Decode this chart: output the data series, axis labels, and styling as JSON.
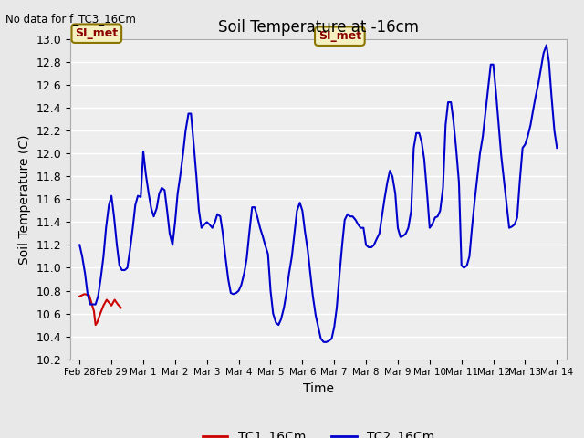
{
  "title": "Soil Temperature at -16cm",
  "xlabel": "Time",
  "ylabel": "Soil Temperature (C)",
  "no_data_text": "No data for f_TC3_16Cm",
  "annotation_text": "SI_met",
  "ylim": [
    10.2,
    13.0
  ],
  "background_color": "#e8e8e8",
  "plot_bg_color": "#eeeeee",
  "grid_color": "white",
  "tc1_color": "#cc0000",
  "tc2_color": "#0000cc",
  "legend_tc1": "TC1_16Cm",
  "legend_tc2": "TC2_16Cm",
  "x_tick_labels": [
    "Feb 28",
    "Feb 29",
    "Mar 1",
    "Mar 2",
    "Mar 3",
    "Mar 4",
    "Mar 5",
    "Mar 6",
    "Mar 7",
    "Mar 8",
    "Mar 9",
    "Mar 10",
    "Mar 11",
    "Mar 12",
    "Mar 13",
    "Mar 14"
  ],
  "x_tick_positions": [
    0,
    1,
    2,
    3,
    4,
    5,
    6,
    7,
    8,
    9,
    10,
    11,
    12,
    13,
    14,
    15
  ],
  "tc1_x": [
    0.0,
    0.15,
    0.3,
    0.45,
    0.5,
    0.55,
    0.65,
    0.75,
    0.85,
    1.0,
    1.1,
    1.2,
    1.3
  ],
  "tc1_y": [
    10.75,
    10.77,
    10.76,
    10.62,
    10.5,
    10.52,
    10.6,
    10.67,
    10.72,
    10.67,
    10.72,
    10.68,
    10.65
  ],
  "tc2_x": [
    0.0,
    0.08,
    0.17,
    0.25,
    0.33,
    0.42,
    0.5,
    0.58,
    0.67,
    0.75,
    0.83,
    0.92,
    1.0,
    1.08,
    1.17,
    1.25,
    1.33,
    1.42,
    1.5,
    1.58,
    1.67,
    1.75,
    1.83,
    1.92,
    2.0,
    2.08,
    2.17,
    2.25,
    2.33,
    2.42,
    2.5,
    2.58,
    2.67,
    2.75,
    2.83,
    2.92,
    3.0,
    3.08,
    3.17,
    3.25,
    3.33,
    3.42,
    3.5,
    3.58,
    3.67,
    3.75,
    3.83,
    3.92,
    4.0,
    4.08,
    4.17,
    4.25,
    4.33,
    4.42,
    4.5,
    4.58,
    4.67,
    4.75,
    4.83,
    4.92,
    5.0,
    5.08,
    5.17,
    5.25,
    5.33,
    5.42,
    5.5,
    5.58,
    5.67,
    5.75,
    5.83,
    5.92,
    6.0,
    6.08,
    6.17,
    6.25,
    6.33,
    6.42,
    6.5,
    6.58,
    6.67,
    6.75,
    6.83,
    6.92,
    7.0,
    7.08,
    7.17,
    7.25,
    7.33,
    7.42,
    7.5,
    7.58,
    7.67,
    7.75,
    7.83,
    7.92,
    8.0,
    8.08,
    8.17,
    8.25,
    8.33,
    8.42,
    8.5,
    8.58,
    8.67,
    8.75,
    8.83,
    8.92,
    9.0,
    9.08,
    9.17,
    9.25,
    9.33,
    9.42,
    9.5,
    9.58,
    9.67,
    9.75,
    9.83,
    9.92,
    10.0,
    10.08,
    10.17,
    10.25,
    10.33,
    10.42,
    10.5,
    10.58,
    10.67,
    10.75,
    10.83,
    10.92,
    11.0,
    11.08,
    11.17,
    11.25,
    11.33,
    11.42,
    11.5,
    11.58,
    11.67,
    11.75,
    11.83,
    11.92,
    12.0,
    12.08,
    12.17,
    12.25,
    12.33,
    12.42,
    12.5,
    12.58,
    12.67,
    12.75,
    12.83,
    12.92,
    13.0,
    13.08,
    13.17,
    13.25,
    13.33,
    13.42,
    13.5,
    13.58,
    13.67,
    13.75,
    13.83,
    13.92,
    14.0,
    14.08,
    14.17,
    14.25,
    14.33,
    14.42,
    14.5,
    14.58,
    14.67,
    14.75,
    14.83,
    14.92,
    15.0
  ],
  "tc2_y": [
    11.2,
    11.1,
    10.95,
    10.77,
    10.68,
    10.68,
    10.68,
    10.75,
    10.92,
    11.1,
    11.35,
    11.55,
    11.63,
    11.45,
    11.2,
    11.02,
    10.98,
    10.98,
    11.0,
    11.15,
    11.35,
    11.55,
    11.63,
    11.62,
    12.02,
    11.82,
    11.65,
    11.52,
    11.45,
    11.52,
    11.65,
    11.7,
    11.68,
    11.5,
    11.3,
    11.2,
    11.4,
    11.65,
    11.82,
    12.0,
    12.2,
    12.35,
    12.35,
    12.1,
    11.8,
    11.5,
    11.35,
    11.38,
    11.4,
    11.38,
    11.35,
    11.4,
    11.47,
    11.45,
    11.3,
    11.1,
    10.9,
    10.78,
    10.77,
    10.78,
    10.8,
    10.85,
    10.95,
    11.08,
    11.3,
    11.53,
    11.53,
    11.45,
    11.35,
    11.28,
    11.2,
    11.12,
    10.8,
    10.6,
    10.52,
    10.5,
    10.55,
    10.65,
    10.78,
    10.95,
    11.1,
    11.3,
    11.5,
    11.57,
    11.5,
    11.32,
    11.15,
    10.95,
    10.75,
    10.58,
    10.48,
    10.38,
    10.35,
    10.35,
    10.36,
    10.38,
    10.48,
    10.65,
    10.95,
    11.2,
    11.42,
    11.47,
    11.45,
    11.45,
    11.42,
    11.38,
    11.35,
    11.35,
    11.2,
    11.18,
    11.18,
    11.2,
    11.25,
    11.3,
    11.45,
    11.6,
    11.75,
    11.85,
    11.8,
    11.65,
    11.35,
    11.27,
    11.28,
    11.3,
    11.35,
    11.5,
    12.05,
    12.18,
    12.18,
    12.1,
    11.95,
    11.65,
    11.35,
    11.38,
    11.44,
    11.45,
    11.5,
    11.7,
    12.25,
    12.45,
    12.45,
    12.28,
    12.05,
    11.75,
    11.02,
    11.0,
    11.02,
    11.1,
    11.35,
    11.6,
    11.8,
    12.0,
    12.15,
    12.35,
    12.55,
    12.78,
    12.78,
    12.55,
    12.25,
    11.98,
    11.78,
    11.55,
    11.35,
    11.36,
    11.38,
    11.44,
    11.75,
    12.05,
    12.08,
    12.15,
    12.25,
    12.38,
    12.5,
    12.62,
    12.75,
    12.88,
    12.95,
    12.8,
    12.5,
    12.2,
    12.05
  ]
}
